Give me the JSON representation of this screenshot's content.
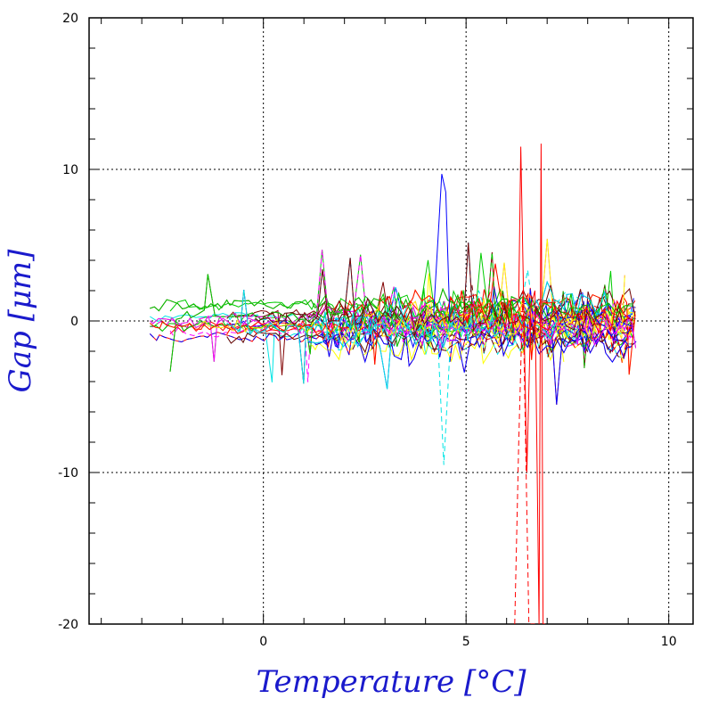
{
  "chart_data": {
    "type": "line",
    "xlabel": "Temperature [°C]",
    "ylabel": "Gap [μm]",
    "xlim": [
      -4.3,
      10.6
    ],
    "ylim": [
      -20,
      20
    ],
    "xticks": [
      "0",
      "5",
      "10"
    ],
    "yticks": [
      "20",
      "10",
      "0",
      "-10",
      "-20"
    ],
    "grid": true,
    "series_colors": [
      "#ff0000",
      "#00cc00",
      "#0000ff",
      "#ff00ff",
      "#00e5e5",
      "#ffff00",
      "#800000"
    ],
    "series_density": "hundreds of overlapping solid and dashed traces",
    "typical_band": [
      -5,
      5
    ],
    "notable_traces": [
      {
        "color": "#ff0000",
        "style": "solid",
        "x": [
          6.3,
          6.35,
          6.5,
          6.6,
          6.7,
          6.8,
          6.85,
          6.9,
          6.95
        ],
        "y": [
          1.5,
          11.5,
          -10,
          1,
          2,
          -20,
          11.7,
          -20,
          -20
        ]
      },
      {
        "color": "#ff0000",
        "style": "dashed",
        "x": [
          6.2,
          6.3,
          6.4,
          6.55,
          6.7
        ],
        "y": [
          -20,
          -8,
          2,
          -20,
          -20
        ]
      },
      {
        "color": "#0000ff",
        "style": "solid",
        "x": [
          4.2,
          4.4,
          4.5,
          4.6
        ],
        "y": [
          0.5,
          9.7,
          8.5,
          0
        ]
      },
      {
        "color": "#00e5e5",
        "style": "dashed",
        "x": [
          4.3,
          4.45,
          4.6
        ],
        "y": [
          -1,
          -9.5,
          -2
        ]
      }
    ]
  }
}
